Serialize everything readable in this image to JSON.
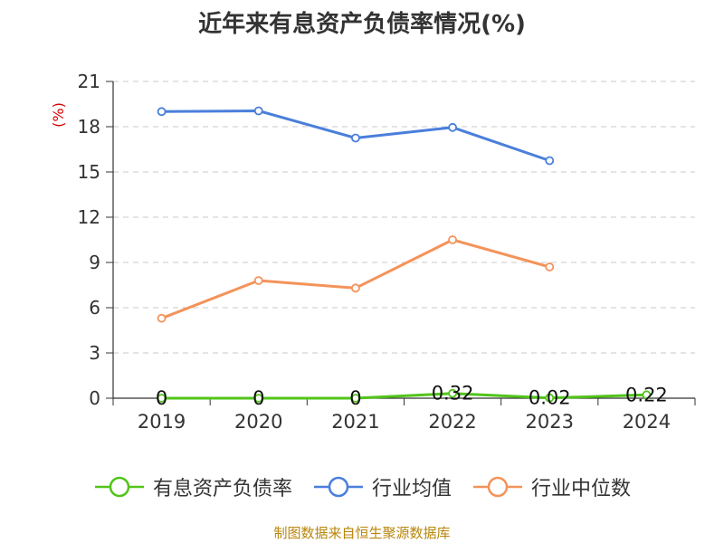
{
  "chart_data": {
    "type": "line",
    "title": "近年来有息资产负债率情况(%)",
    "ylabel": "(%)",
    "xlabel": "",
    "categories": [
      "2019",
      "2020",
      "2021",
      "2022",
      "2023",
      "2024"
    ],
    "ylim": [
      0,
      21
    ],
    "yticks": [
      "0",
      "3",
      "6",
      "9",
      "12",
      "15",
      "18",
      "21"
    ],
    "grid": true,
    "legend_position": "bottom",
    "series": [
      {
        "name": "有息资产负债率",
        "color": "#52c41a",
        "values": [
          0,
          0,
          0,
          0.32,
          0.02,
          0.22
        ],
        "labels": [
          "0",
          "0",
          "0",
          "0.32",
          "0.02",
          "0.22"
        ]
      },
      {
        "name": "行业均值",
        "color": "#4a7fdb",
        "values": [
          19.0,
          19.05,
          17.25,
          17.95,
          15.75,
          null
        ]
      },
      {
        "name": "行业中位数",
        "color": "#f4935a",
        "values": [
          5.3,
          7.8,
          7.3,
          10.5,
          8.7,
          null
        ]
      }
    ],
    "source": "制图数据来自恒生聚源数据库"
  }
}
